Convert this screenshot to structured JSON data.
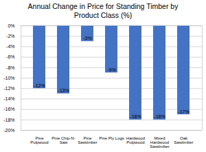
{
  "chart_data": {
    "type": "bar",
    "title": "Annual Change in Price for Standing Timber by\nProduct Class (%)",
    "categories": [
      "Pine\nPulpwood",
      "Pine Chip-N-\nSaw",
      "Pine\nSawtimber",
      "Pine Ply Logs",
      "Hardwood\nPulpwood",
      "Mixed\nHardwood\nSawtimber",
      "Oak\nSawtimber"
    ],
    "values": [
      -12,
      -13,
      -3,
      -9,
      -18,
      -18,
      -17
    ],
    "value_labels": [
      "-12%",
      "-13%",
      "-3%",
      "-9%",
      "-18%",
      "-18%",
      "-17%"
    ],
    "data_labels": true,
    "color": "#4472C4",
    "ylim": [
      -20,
      0
    ],
    "yticks": [
      {
        "value": 0,
        "label": "0%"
      },
      {
        "value": -2,
        "label": "-2%"
      },
      {
        "value": -4,
        "label": "-4%"
      },
      {
        "value": -6,
        "label": "-6%"
      },
      {
        "value": -8,
        "label": "-8%"
      },
      {
        "value": -10,
        "label": "-10%"
      },
      {
        "value": -12,
        "label": "-12%"
      },
      {
        "value": -14,
        "label": "-14%"
      },
      {
        "value": -16,
        "label": "-16%"
      },
      {
        "value": -18,
        "label": "-18%"
      },
      {
        "value": -20,
        "label": "-20%"
      }
    ],
    "grid": true
  }
}
